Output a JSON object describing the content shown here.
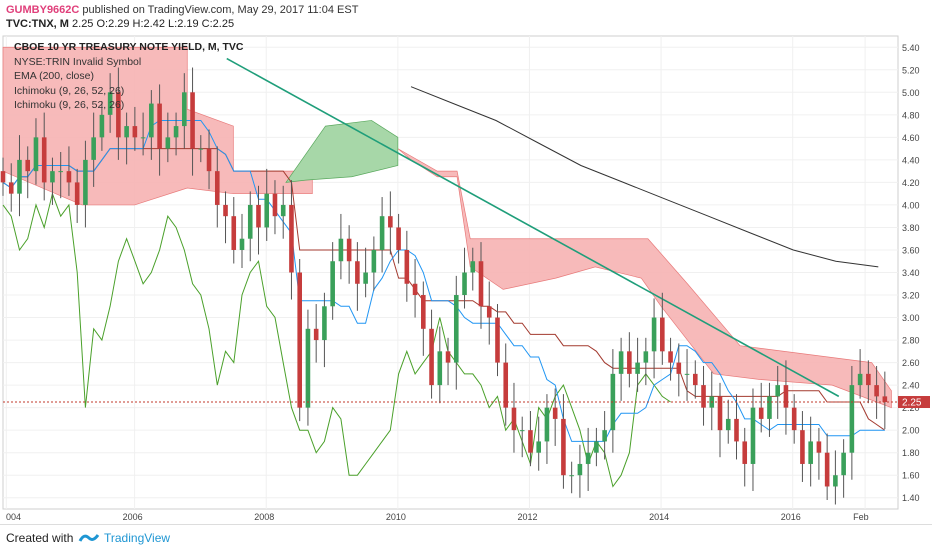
{
  "header": {
    "user": "GUMBY9662C",
    "published": "published on TradingView.com, May 29, 2017 11:04 EST",
    "symbol": "TVC:TNX, M",
    "ohlc": "2.25 O:2.29 H:2.42 L:2.19 C:2.25"
  },
  "legend": {
    "title": "CBOE 10 YR TREASURY NOTE YIELD, M, TVC",
    "lines": [
      "NYSE:TRIN Invalid Symbol",
      "EMA (200, close)",
      "Ichimoku (9, 26, 52, 26)",
      "Ichimoku (9, 26, 52, 26)"
    ]
  },
  "footer": {
    "created": "Created with",
    "brand": "TradingView"
  },
  "colors": {
    "up": "#3aa05a",
    "down": "#c63c3c",
    "cloud_red": "#f6b3b3",
    "cloud_green": "#a7d7a8",
    "trend": "#1f9e7a",
    "ema": "#333333",
    "lagging": "#4aa02a",
    "tenkan": "#2196f3",
    "kijun": "#a33a2f"
  },
  "chart_data": {
    "type": "line",
    "title": "CBOE 10 YR TREASURY NOTE YIELD, M, TVC",
    "ylim": [
      1.3,
      5.5
    ],
    "y_ticks": [
      "5.40",
      "5.20",
      "5.00",
      "4.80",
      "4.60",
      "4.40",
      "4.20",
      "4.00",
      "3.80",
      "3.60",
      "3.40",
      "3.20",
      "3.00",
      "2.80",
      "2.60",
      "2.40",
      "2.20",
      "2.00",
      "1.80",
      "1.60",
      "1.40"
    ],
    "x_ticks": [
      "004",
      "2006",
      "2008",
      "2010",
      "2012",
      "2014",
      "2016",
      "Feb"
    ],
    "last_price": "2.25",
    "candles_close_approx": [
      4.2,
      4.1,
      4.4,
      4.3,
      4.6,
      4.2,
      4.3,
      4.3,
      4.2,
      4.0,
      4.4,
      4.6,
      4.8,
      5.0,
      4.6,
      4.7,
      4.6,
      4.6,
      4.9,
      4.5,
      4.6,
      4.7,
      5.0,
      4.5,
      4.5,
      4.3,
      4.0,
      3.9,
      3.6,
      3.7,
      4.0,
      3.8,
      4.1,
      3.9,
      4.0,
      3.4,
      2.2,
      2.9,
      2.8,
      3.1,
      3.5,
      3.7,
      3.5,
      3.3,
      3.4,
      3.6,
      3.9,
      3.8,
      3.6,
      3.3,
      3.2,
      2.9,
      2.4,
      2.7,
      2.6,
      3.2,
      3.4,
      3.5,
      3.1,
      3.0,
      2.6,
      2.2,
      2.0,
      2.0,
      1.8,
      1.9,
      2.2,
      2.1,
      1.6,
      1.6,
      1.7,
      1.8,
      1.9,
      2.0,
      2.5,
      2.7,
      2.5,
      2.6,
      2.7,
      3.0,
      2.7,
      2.6,
      2.5,
      2.5,
      2.4,
      2.2,
      2.3,
      2.0,
      2.1,
      1.9,
      1.7,
      2.2,
      2.1,
      2.3,
      2.4,
      2.2,
      2.0,
      1.7,
      1.9,
      1.8,
      1.5,
      1.6,
      1.8,
      2.4,
      2.5,
      2.4,
      2.3,
      2.25
    ],
    "ema_200": {
      "x_start": "2010",
      "values": [
        5.05,
        4.9,
        4.75,
        4.55,
        4.35,
        4.2,
        4.05,
        3.9,
        3.75,
        3.6,
        3.5,
        3.45
      ]
    },
    "trendline": {
      "from": [
        2007.4,
        5.3
      ],
      "to": [
        2016.7,
        2.3
      ]
    },
    "annotations": [
      "NYSE:TRIN Invalid Symbol"
    ]
  }
}
